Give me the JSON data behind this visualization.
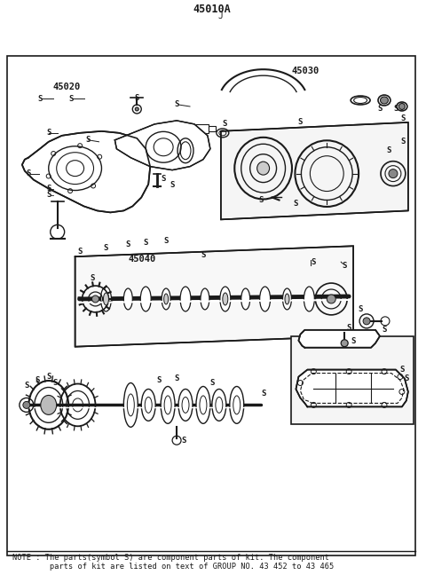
{
  "title": "45010A",
  "title_sub": "J",
  "bg_color": "#ffffff",
  "border_color": "#000000",
  "line_color": "#1a1a1a",
  "note_text": "NOTE : The parts(symbol S) are component parts of kit. The component\n        parts of kit are listed on text of GROUP NO. 43 452 to 43 465",
  "figsize": [
    4.8,
    6.57
  ],
  "dpi": 100
}
